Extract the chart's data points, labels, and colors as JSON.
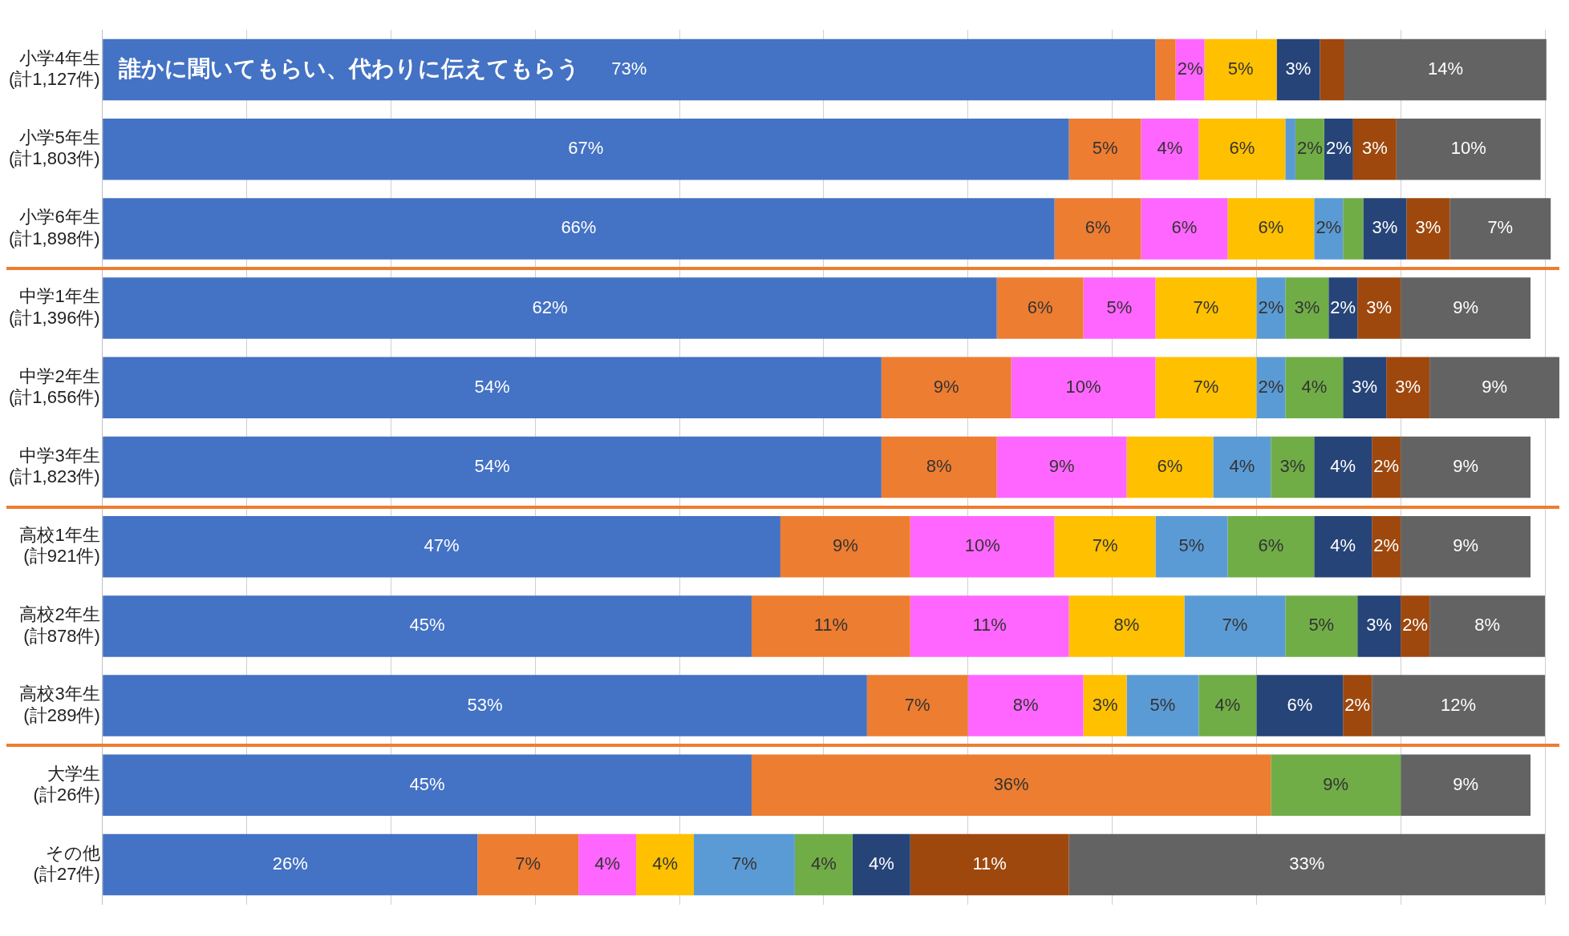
{
  "chart_data": {
    "type": "bar",
    "orientation": "horizontal",
    "stacked": true,
    "categories": [
      "小学4年生\n(計1,127件)",
      "小学5年生\n(計1,803件)",
      "小学6年生\n(計1,898件)",
      "中学1年生\n(計1,396件)",
      "中学2年生\n(計1,656件)",
      "中学3年生\n(計1,823件)",
      "高校1年生\n(計921件)",
      "高校2年生\n(計878件)",
      "高校3年生\n(計289件)",
      "大学生\n(計26件)",
      "その他\n(計27件)"
    ],
    "xlim": [
      0,
      101
    ],
    "xticks": [
      {
        "value": 0,
        "label": null
      },
      {
        "value": 10,
        "label": null
      },
      {
        "value": 20,
        "label": null
      },
      {
        "value": 30,
        "label": null
      },
      {
        "value": 40,
        "label": null
      },
      {
        "value": 50,
        "label": null
      },
      {
        "value": 60,
        "label": null
      },
      {
        "value": 70,
        "label": null
      },
      {
        "value": 80,
        "label": null
      },
      {
        "value": 90,
        "label": null
      },
      {
        "value": 100,
        "label": null
      }
    ],
    "grid": "x",
    "tick_labels": "y",
    "legend": false,
    "series": [
      {
        "name": "誰かに聞いてもらい、代わりに伝えてもらう",
        "color": "#4472c4",
        "values": [
          73,
          67,
          66,
          62,
          54,
          54,
          47,
          45,
          53,
          45,
          26
        ],
        "value_labels": [
          "73%",
          "67%",
          "66%",
          "62%",
          "54%",
          "54%",
          "47%",
          "45%",
          "53%",
          "45%",
          "26%"
        ]
      },
      {
        "color": "#ed7d31",
        "values": [
          1.4,
          5,
          6,
          6,
          9,
          8,
          9,
          11,
          7,
          36,
          7
        ],
        "value_labels": [
          null,
          "5%",
          "6%",
          "6%",
          "9%",
          "8%",
          "9%",
          "11%",
          "7%",
          "36%",
          "7%"
        ]
      },
      {
        "color": "#ff66ff",
        "values": [
          2,
          4,
          6,
          5,
          10,
          9,
          10,
          11,
          8,
          null,
          4
        ],
        "value_labels": [
          "2%",
          "4%",
          "6%",
          "5%",
          "10%",
          "9%",
          "10%",
          "11%",
          "8%",
          null,
          "4%"
        ]
      },
      {
        "color": "#ffc000",
        "values": [
          5,
          6,
          6,
          7,
          7,
          6,
          7,
          8,
          3,
          null,
          4
        ],
        "value_labels": [
          "5%",
          "6%",
          "6%",
          "7%",
          "7%",
          "6%",
          "7%",
          "8%",
          "3%",
          null,
          "4%"
        ]
      },
      {
        "color": "#5b9bd5",
        "values": [
          null,
          0.7,
          2,
          2,
          2,
          4,
          5,
          7,
          5,
          null,
          7
        ],
        "value_labels": [
          null,
          null,
          "2%",
          "2%",
          "2%",
          "4%",
          "5%",
          "7%",
          "5%",
          null,
          "7%"
        ]
      },
      {
        "color": "#70ad47",
        "values": [
          null,
          2,
          1.4,
          3,
          4,
          3,
          6,
          5,
          4,
          9,
          4
        ],
        "value_labels": [
          null,
          "2%",
          null,
          "3%",
          "4%",
          "3%",
          "6%",
          "5%",
          "4%",
          "9%",
          "4%"
        ]
      },
      {
        "color": "#264478",
        "values": [
          3,
          2,
          3,
          2,
          3,
          4,
          4,
          3,
          6,
          null,
          4
        ],
        "value_labels": [
          "3%",
          "2%",
          "3%",
          "2%",
          "3%",
          "4%",
          "4%",
          "3%",
          "6%",
          null,
          "4%"
        ]
      },
      {
        "color": "#9e480e",
        "values": [
          1.7,
          3,
          3,
          3,
          3,
          2,
          2,
          2,
          2,
          null,
          11
        ],
        "value_labels": [
          null,
          "3%",
          "3%",
          "3%",
          "3%",
          "2%",
          "2%",
          "2%",
          "2%",
          null,
          "11%"
        ]
      },
      {
        "color": "#636363",
        "values": [
          14,
          10,
          7,
          9,
          9,
          9,
          9,
          8,
          12,
          9,
          33
        ],
        "value_labels": [
          "14%",
          "10%",
          "7%",
          "9%",
          "9%",
          "9%",
          "9%",
          "8%",
          "12%",
          "9%",
          "33%"
        ]
      }
    ]
  }
}
